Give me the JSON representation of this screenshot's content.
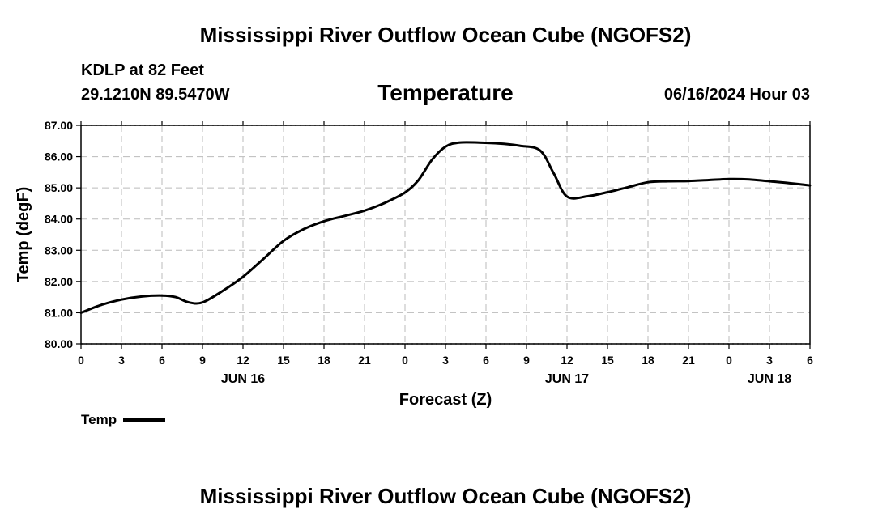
{
  "header": {
    "main_title": "Mississippi River Outflow Ocean Cube (NGOFS2)",
    "station": "KDLP at 82 Feet",
    "coords": "29.1210N  89.5470W",
    "datetime": "06/16/2024 Hour 03"
  },
  "footer": {
    "title": "Mississippi River Outflow Ocean Cube (NGOFS2)"
  },
  "legend": {
    "label": "Temp",
    "color": "#000000"
  },
  "chart_data": {
    "type": "line",
    "title": "Temperature",
    "xlabel": "Forecast (Z)",
    "ylabel": "Temp (degF)",
    "ylim": [
      80.0,
      87.0
    ],
    "yticks": [
      "80.00",
      "81.00",
      "82.00",
      "83.00",
      "84.00",
      "85.00",
      "86.00",
      "87.00"
    ],
    "xlim": [
      0,
      54
    ],
    "xtick_labels": [
      "0",
      "3",
      "6",
      "9",
      "12",
      "15",
      "18",
      "21",
      "0",
      "3",
      "6",
      "9",
      "12",
      "15",
      "18",
      "21",
      "0",
      "3",
      "6"
    ],
    "day_labels": [
      {
        "label": "JUN 16",
        "hour": 12
      },
      {
        "label": "JUN 17",
        "hour": 36
      },
      {
        "label": "JUN 18",
        "hour": 51
      }
    ],
    "grid": true,
    "series": [
      {
        "name": "Temp",
        "x": [
          0,
          1.5,
          3,
          4.5,
          6,
          7,
          8,
          9,
          10.5,
          12,
          13.5,
          15,
          16.5,
          18,
          19.5,
          21,
          22.5,
          24,
          25,
          26,
          27,
          28,
          29.5,
          31,
          32.5,
          34,
          35,
          36,
          37.5,
          39,
          40.5,
          42,
          43.5,
          45,
          46.5,
          48,
          49.5,
          51,
          52.5,
          54
        ],
        "values": [
          81.0,
          81.25,
          81.42,
          81.52,
          81.55,
          81.5,
          81.33,
          81.33,
          81.7,
          82.15,
          82.72,
          83.3,
          83.68,
          83.93,
          84.1,
          84.27,
          84.52,
          84.85,
          85.25,
          85.9,
          86.32,
          86.45,
          86.45,
          86.42,
          86.35,
          86.2,
          85.48,
          84.72,
          84.73,
          84.86,
          85.02,
          85.18,
          85.21,
          85.22,
          85.25,
          85.28,
          85.27,
          85.21,
          85.15,
          85.08
        ]
      }
    ]
  }
}
